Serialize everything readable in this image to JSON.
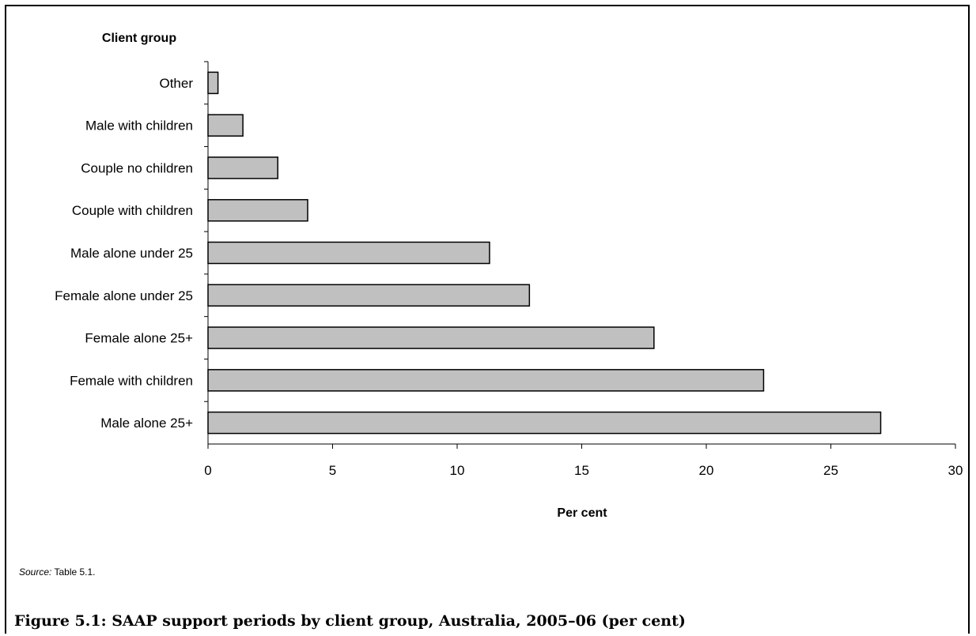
{
  "chart_data": {
    "type": "bar",
    "orientation": "horizontal",
    "categories": [
      "Other",
      "Male with children",
      "Couple no children",
      "Couple with children",
      "Male alone under 25",
      "Female alone under 25",
      "Female alone 25+",
      "Female with children",
      "Male alone 25+"
    ],
    "values": [
      0.4,
      1.4,
      2.8,
      4.0,
      11.3,
      12.9,
      17.9,
      22.3,
      27.0
    ],
    "ylabel": "Client group",
    "xlabel": "Per cent",
    "xlim": [
      0,
      30
    ],
    "xticks": [
      0,
      5,
      10,
      15,
      20,
      25,
      30
    ],
    "grid": false,
    "legend": "none",
    "bar_color": "#c0c0c0",
    "bar_outline": "#000000"
  },
  "source": {
    "label": "Source:",
    "text": " Table 5.1."
  },
  "caption": "Figure 5.1: SAAP support periods by client group, Australia, 2005–06 (per cent)"
}
